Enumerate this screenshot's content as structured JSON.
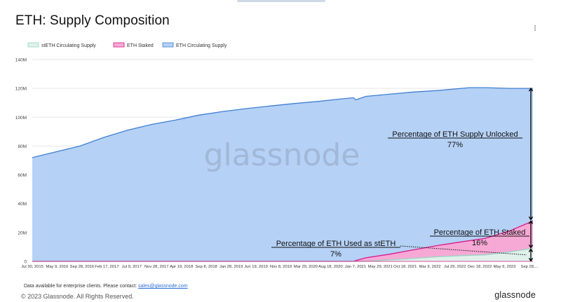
{
  "title": "ETH: Supply Composition",
  "footer": {
    "note_prefix": "Data available for enterprise clients. Please contact: ",
    "note_link": "sales@glassnode.com",
    "copyright": "© 2023 Glassnode. All Rights Reserved.",
    "brand": "glassnode"
  },
  "watermark": "glassnode",
  "colors": {
    "circulating_fill": "#b5d1f5",
    "circulating_line": "#3f7fd3",
    "staked_fill": "#f7a9d6",
    "staked_line": "#d61b86",
    "steth_fill": "#dff1ea",
    "steth_line": "#97d7c3"
  },
  "chart_data": {
    "type": "area",
    "x_ticks": [
      "Jul 30, 2015",
      "May 9, 2016",
      "Sep 28, 2016",
      "Feb 17, 2017",
      "Jul 9, 2017",
      "Nov 28, 2017",
      "Apr 19, 2018",
      "Sep 8, 2018",
      "Jan 28, 2019",
      "Jun 19, 2019",
      "Nov 8, 2019",
      "Mar 29, 2020",
      "Aug 18, 2020",
      "Jan 7, 2021",
      "May 29, 2021",
      "Oct 18, 2021",
      "Mar 9, 2022",
      "Jul 29, 2022",
      "Dec 18, 2022",
      "May 9, 2023",
      "Sep 28,..."
    ],
    "y_ticks": [
      "0",
      "20M",
      "40M",
      "60M",
      "80M",
      "100M",
      "120M",
      "140M"
    ],
    "ylim": [
      0,
      140
    ],
    "legend": [
      "stETH Circulating Supply",
      "ETH Staked",
      "ETH Circulating Supply"
    ],
    "legend_position": "top-left",
    "series": [
      {
        "name": "ETH Circulating Supply",
        "x": [
          "2015-07-30",
          "2016-05-09",
          "2016-09-28",
          "2017-02-17",
          "2017-07-09",
          "2017-11-28",
          "2018-04-19",
          "2018-09-08",
          "2019-01-28",
          "2019-06-19",
          "2019-11-08",
          "2020-03-29",
          "2020-08-18",
          "2020-10-25",
          "2020-11-05",
          "2021-01-07",
          "2021-05-29",
          "2021-10-18",
          "2022-03-09",
          "2022-07-29",
          "2022-09-15",
          "2022-12-18",
          "2023-05-09",
          "2023-09-28"
        ],
        "values": [
          72,
          80,
          86,
          91,
          95,
          98,
          101.5,
          104,
          106,
          107.8,
          109.5,
          111,
          112.8,
          113.5,
          112,
          114.5,
          116,
          117.5,
          118.5,
          120,
          120.5,
          120.5,
          120,
          120
        ]
      },
      {
        "name": "ETH Staked",
        "x": [
          "2015-07-30",
          "2020-10-25",
          "2020-11-05",
          "2021-01-07",
          "2021-05-29",
          "2021-10-18",
          "2022-03-09",
          "2022-07-29",
          "2022-12-18",
          "2023-05-09",
          "2023-09-28"
        ],
        "values": [
          0,
          0,
          0.5,
          2.5,
          5,
          8,
          11,
          13.5,
          16,
          21,
          28
        ]
      },
      {
        "name": "stETH Circulating Supply",
        "x": [
          "2015-07-30",
          "2020-12-20",
          "2021-05-29",
          "2021-10-18",
          "2022-03-09",
          "2022-07-29",
          "2022-12-18",
          "2023-05-09",
          "2023-09-28"
        ],
        "values": [
          0,
          0,
          1,
          2,
          3.2,
          4,
          4.5,
          6.5,
          9
        ]
      }
    ],
    "annotations": [
      {
        "label": "Percentage of ETH Supply Unlocked",
        "value": "77%"
      },
      {
        "label": "Percentage of ETH Staked",
        "value": "16%"
      },
      {
        "label": "Percentage of ETH Used as stETH",
        "value": "7%"
      }
    ]
  }
}
